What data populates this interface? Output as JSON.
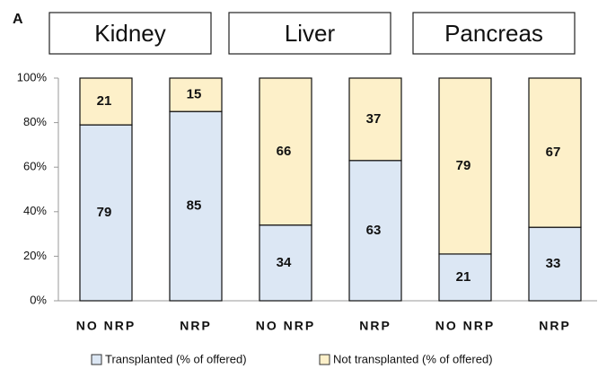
{
  "chart_data": {
    "type": "stacked_bar",
    "panel_label": "A",
    "groups": [
      "Kidney",
      "Liver",
      "Pancreas"
    ],
    "categories": [
      "NO NRP",
      "NRP",
      "NO NRP",
      "NRP",
      "NO NRP",
      "NRP"
    ],
    "series": [
      {
        "name": "Transplanted (% of offered)",
        "color": "#dce7f4",
        "values": [
          79,
          85,
          34,
          63,
          21,
          33
        ]
      },
      {
        "name": "Not transplanted (% of offered)",
        "color": "#fdf0c9",
        "values": [
          21,
          15,
          66,
          37,
          79,
          67
        ]
      }
    ],
    "ylim": [
      0,
      100
    ],
    "yticks": [
      {
        "value": 0,
        "label": "0%"
      },
      {
        "value": 20,
        "label": "20%"
      },
      {
        "value": 40,
        "label": "40%"
      },
      {
        "value": 60,
        "label": "60%"
      },
      {
        "value": 80,
        "label": "80%"
      },
      {
        "value": 100,
        "label": "100%"
      }
    ],
    "legend": "bottom"
  }
}
